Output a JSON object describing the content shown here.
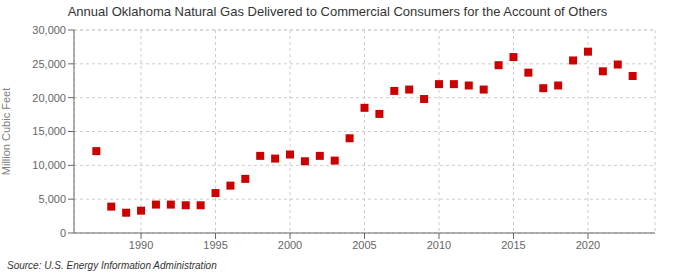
{
  "chart_data": {
    "type": "scatter",
    "title": "Annual Oklahoma Natural Gas Delivered to Commercial Consumers for the Account of Others",
    "y_label": "Million Cubic Feet",
    "annotations": [
      "Source: U.S. Energy Information Administration"
    ],
    "x": [
      1987,
      1988,
      1989,
      1990,
      1991,
      1992,
      1993,
      1994,
      1995,
      1996,
      1997,
      1998,
      1999,
      2000,
      2001,
      2002,
      2003,
      2004,
      2005,
      2006,
      2007,
      2008,
      2009,
      2010,
      2011,
      2012,
      2013,
      2014,
      2015,
      2016,
      2017,
      2018,
      2019,
      2020,
      2021,
      2022,
      2023
    ],
    "values": [
      12100,
      3900,
      3000,
      3300,
      4200,
      4200,
      4100,
      4100,
      5900,
      7000,
      8000,
      11400,
      11000,
      11600,
      10600,
      11400,
      10700,
      14000,
      18500,
      17600,
      21000,
      21200,
      19800,
      22000,
      22000,
      21800,
      21200,
      24800,
      26000,
      23700,
      21400,
      21800,
      25500,
      26800,
      23900,
      24900,
      23200
    ],
    "color": "#cc0000",
    "marker": "square",
    "xlim": [
      1985.5,
      2024.5
    ],
    "ylim": [
      0,
      30001
    ],
    "xticks": [
      1990,
      1995,
      2000,
      2005,
      2010,
      2015,
      2020
    ],
    "yticks": [
      0,
      {
        "value": 5000,
        "label": "5,000"
      },
      {
        "value": 10000,
        "label": "10,000"
      },
      {
        "value": 15000,
        "label": "15,000"
      },
      {
        "value": 20000,
        "label": "20,000"
      },
      {
        "value": 25000,
        "label": "25,000"
      },
      {
        "value": 30000,
        "label": "30,000"
      }
    ],
    "grid": true
  }
}
